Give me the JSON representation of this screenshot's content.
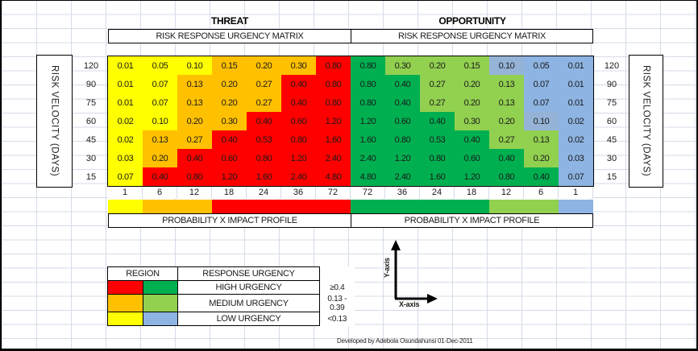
{
  "colors": {
    "threat_high": "#FF0000",
    "threat_medium": "#FFC000",
    "threat_low": "#FFFF00",
    "opp_high": "#00B050",
    "opp_medium": "#92D050",
    "opp_low": "#8DB4E2",
    "opp_low_alt": "#95B3D7"
  },
  "threat": {
    "title": "THREAT",
    "subtitle": "RISK RESPONSE URGENCY MATRIX",
    "profile_label": "PROBABILITY X IMPACT PROFILE",
    "columns": [
      "1",
      "6",
      "12",
      "18",
      "24",
      "36",
      "72"
    ],
    "strip": [
      "L",
      "M",
      "M",
      "H",
      "H",
      "H",
      "H"
    ],
    "rows": [
      {
        "velocity": "120",
        "values": [
          "0.01",
          "0.05",
          "0.10",
          "0.15",
          "0.20",
          "0.30",
          "0.80"
        ],
        "levels": [
          "L",
          "L",
          "L",
          "M",
          "M",
          "M",
          "H"
        ]
      },
      {
        "velocity": "90",
        "values": [
          "0.01",
          "0.07",
          "0.13",
          "0.20",
          "0.27",
          "0.40",
          "0.80"
        ],
        "levels": [
          "L",
          "L",
          "M",
          "M",
          "M",
          "H",
          "H"
        ]
      },
      {
        "velocity": "75",
        "values": [
          "0.01",
          "0.07",
          "0.13",
          "0.20",
          "0.27",
          "0.40",
          "0.80"
        ],
        "levels": [
          "L",
          "L",
          "M",
          "M",
          "M",
          "H",
          "H"
        ]
      },
      {
        "velocity": "60",
        "values": [
          "0.02",
          "0.10",
          "0.20",
          "0.30",
          "0.40",
          "0.60",
          "1.20"
        ],
        "levels": [
          "L",
          "L",
          "M",
          "M",
          "H",
          "H",
          "H"
        ]
      },
      {
        "velocity": "45",
        "values": [
          "0.02",
          "0.13",
          "0.27",
          "0.40",
          "0.53",
          "0.80",
          "1.60"
        ],
        "levels": [
          "L",
          "M",
          "M",
          "H",
          "H",
          "H",
          "H"
        ]
      },
      {
        "velocity": "30",
        "values": [
          "0.03",
          "0.20",
          "0.40",
          "0.60",
          "0.80",
          "1.20",
          "2.40"
        ],
        "levels": [
          "L",
          "M",
          "H",
          "H",
          "H",
          "H",
          "H"
        ]
      },
      {
        "velocity": "15",
        "values": [
          "0.07",
          "0.40",
          "0.80",
          "1.20",
          "1.60",
          "2.40",
          "4.80"
        ],
        "levels": [
          "L",
          "H",
          "H",
          "H",
          "H",
          "H",
          "H"
        ]
      }
    ]
  },
  "opportunity": {
    "title": "OPPORTUNITY",
    "subtitle": "RISK RESPONSE URGENCY MATRIX",
    "profile_label": "PROBABILITY X IMPACT PROFILE",
    "columns": [
      "72",
      "36",
      "24",
      "18",
      "12",
      "6",
      "1"
    ],
    "strip": [
      "H",
      "H",
      "H",
      "H",
      "M",
      "M",
      "L"
    ],
    "rows": [
      {
        "velocity": "120",
        "values": [
          "0.80",
          "0.30",
          "0.20",
          "0.15",
          "0.10",
          "0.05",
          "0.01"
        ],
        "levels": [
          "H",
          "M",
          "M",
          "M",
          "LA",
          "L",
          "L"
        ]
      },
      {
        "velocity": "90",
        "values": [
          "0.80",
          "0.40",
          "0.27",
          "0.20",
          "0.13",
          "0.07",
          "0.01"
        ],
        "levels": [
          "H",
          "H",
          "M",
          "M",
          "M",
          "L",
          "L"
        ]
      },
      {
        "velocity": "75",
        "values": [
          "0.80",
          "0.40",
          "0.27",
          "0.20",
          "0.13",
          "0.07",
          "0.01"
        ],
        "levels": [
          "H",
          "H",
          "M",
          "M",
          "M",
          "L",
          "L"
        ]
      },
      {
        "velocity": "60",
        "values": [
          "1.20",
          "0.60",
          "0.40",
          "0.30",
          "0.20",
          "0.10",
          "0.02"
        ],
        "levels": [
          "H",
          "H",
          "H",
          "M",
          "M",
          "LA",
          "L"
        ]
      },
      {
        "velocity": "45",
        "values": [
          "1.60",
          "0.80",
          "0.53",
          "0.40",
          "0.27",
          "0.13",
          "0.02"
        ],
        "levels": [
          "H",
          "H",
          "H",
          "H",
          "M",
          "M",
          "L"
        ]
      },
      {
        "velocity": "30",
        "values": [
          "2.40",
          "1.20",
          "0.80",
          "0.60",
          "0.40",
          "0.20",
          "0.03"
        ],
        "levels": [
          "H",
          "H",
          "H",
          "H",
          "H",
          "M",
          "L"
        ]
      },
      {
        "velocity": "15",
        "values": [
          "4.80",
          "2.40",
          "1.60",
          "1.20",
          "0.80",
          "0.40",
          "0.07"
        ],
        "levels": [
          "H",
          "H",
          "H",
          "H",
          "H",
          "H",
          "L"
        ]
      }
    ]
  },
  "velocity_axis_label": "RISK VELOCITY (DAYS)",
  "legend": {
    "region_header": "REGION",
    "urgency_header": "RESPONSE URGENCY",
    "rows": [
      {
        "label": "HIGH URGENCY",
        "range": "≥0.4",
        "threat": "H",
        "opp": "H"
      },
      {
        "label": "MEDIUM URGENCY",
        "range": "0.13 - 0.39",
        "threat": "M",
        "opp": "M"
      },
      {
        "label": "LOW URGENCY",
        "range": "<0.13",
        "threat": "L",
        "opp": "L"
      }
    ]
  },
  "axes_diagram": {
    "y_label": "Y-axis",
    "x_label": "X-axis"
  },
  "footer": "Developed by Adebola Osundahunsi 01-Dec-2011"
}
